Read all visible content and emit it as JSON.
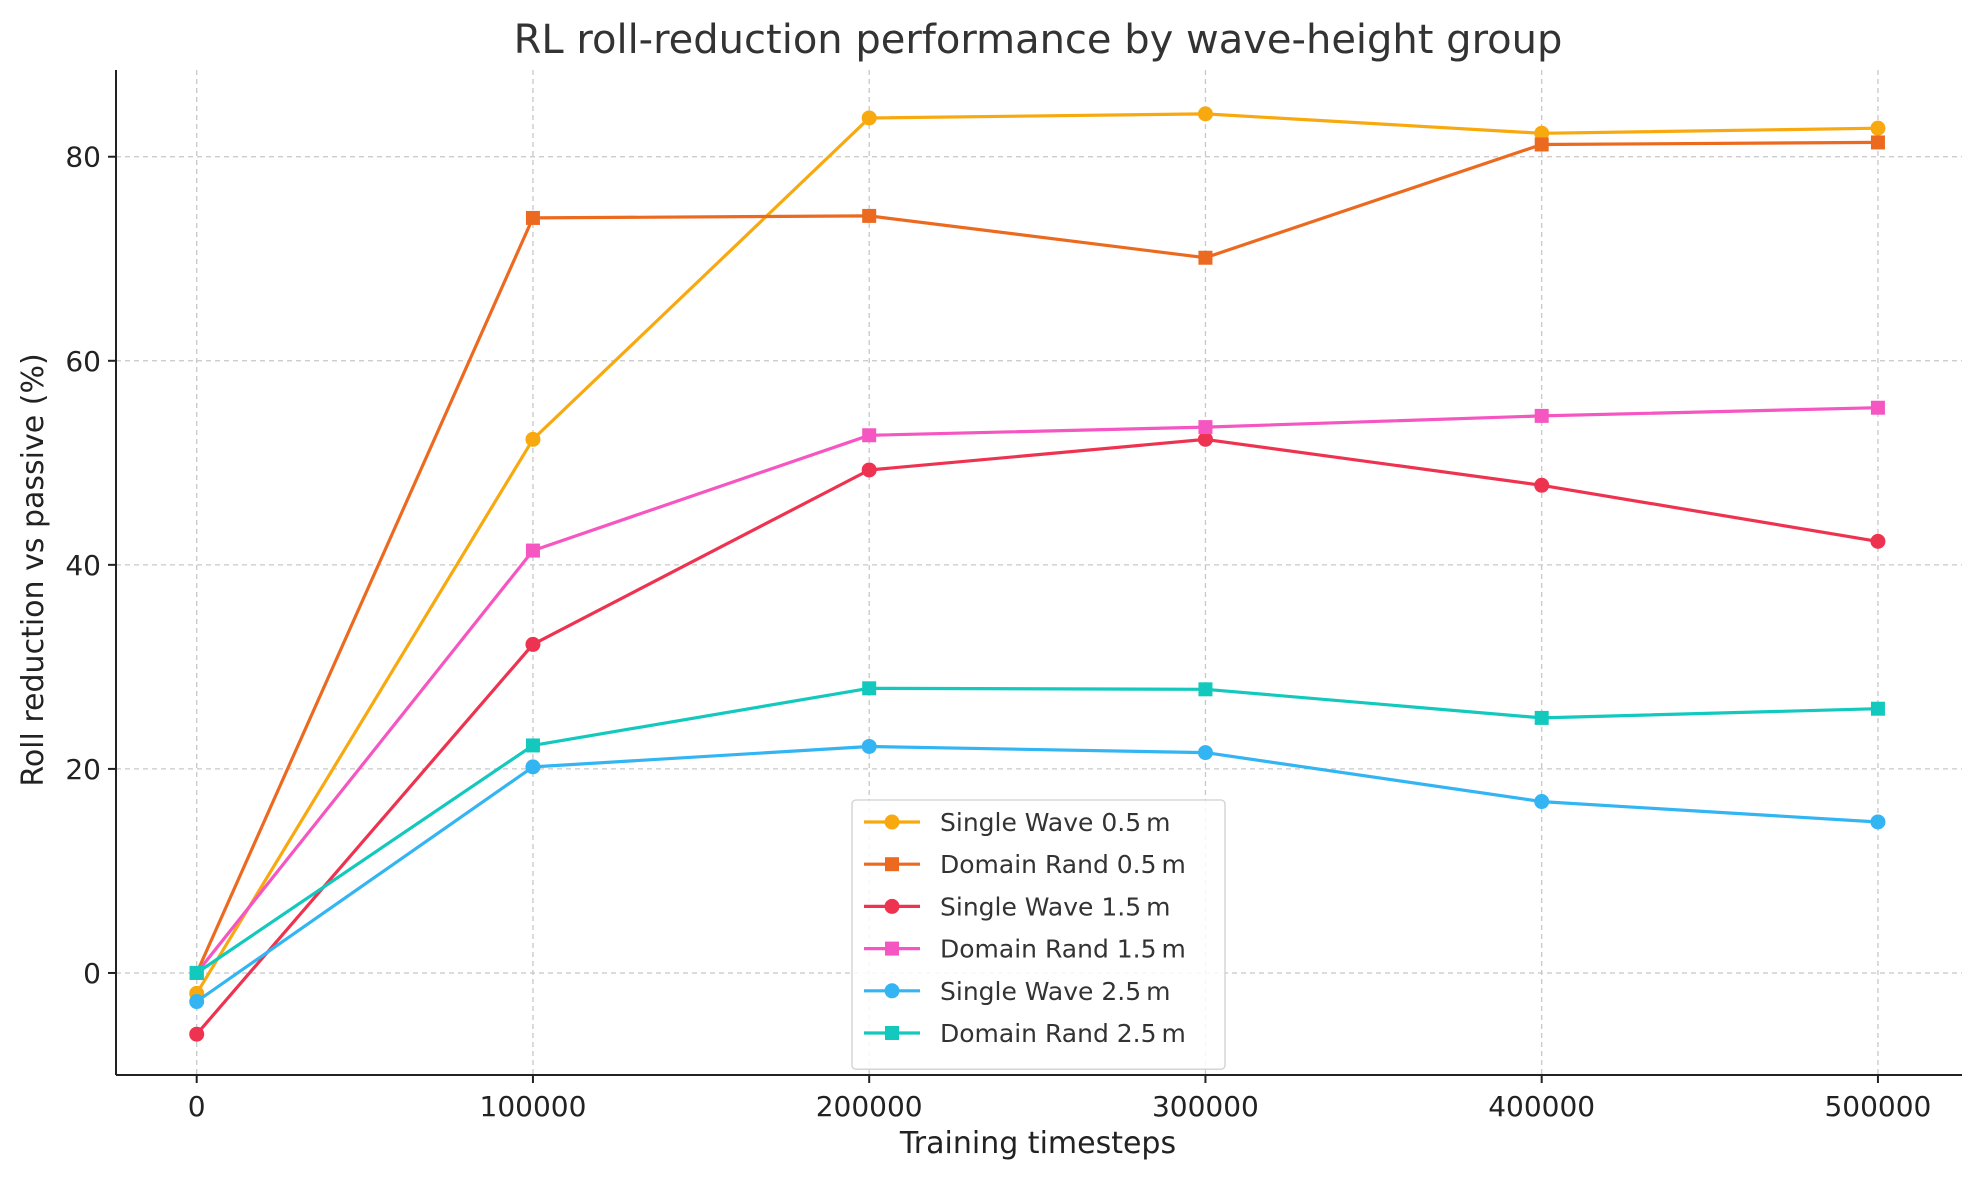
{
  "chart_data": {
    "type": "line",
    "title": "RL roll-reduction performance by wave-height group",
    "xlabel": "Training timesteps",
    "ylabel": "Roll reduction vs passive (%)",
    "x": [
      0,
      100000,
      200000,
      300000,
      400000,
      500000
    ],
    "xticks": [
      0,
      100000,
      200000,
      300000,
      400000,
      500000
    ],
    "xtick_labels": [
      "0",
      "100000",
      "200000",
      "300000",
      "400000",
      "500000"
    ],
    "yticks": [
      0,
      20,
      40,
      60,
      80
    ],
    "ytick_labels": [
      "0",
      "20",
      "40",
      "60",
      "80"
    ],
    "xlim": [
      -24000,
      525000
    ],
    "ylim": [
      -10,
      88.5
    ],
    "grid": true,
    "legend_position": "bottom-center",
    "series": [
      {
        "name": "Single Wave 0.5 m",
        "marker": "circle",
        "color": "#f8a90f",
        "values": [
          -2.0,
          52.3,
          83.8,
          84.2,
          82.3,
          82.8
        ]
      },
      {
        "name": "Domain Rand 0.5 m",
        "marker": "square",
        "color": "#ec6a1f",
        "values": [
          0.0,
          74.0,
          74.2,
          70.1,
          81.2,
          81.4
        ]
      },
      {
        "name": "Single Wave 1.5 m",
        "marker": "circle",
        "color": "#ee3350",
        "values": [
          -6.0,
          32.2,
          49.3,
          52.3,
          47.8,
          42.3
        ]
      },
      {
        "name": "Domain Rand 1.5 m",
        "marker": "square",
        "color": "#f556c1",
        "values": [
          0.0,
          41.4,
          52.7,
          53.5,
          54.6,
          55.4
        ]
      },
      {
        "name": "Single Wave 2.5 m",
        "marker": "circle",
        "color": "#33b5f3",
        "values": [
          -2.8,
          20.2,
          22.2,
          21.6,
          16.8,
          14.8
        ]
      },
      {
        "name": "Domain Rand 2.5 m",
        "marker": "square",
        "color": "#13c9bd",
        "values": [
          0.0,
          22.3,
          27.9,
          27.8,
          25.0,
          25.9
        ]
      }
    ]
  }
}
